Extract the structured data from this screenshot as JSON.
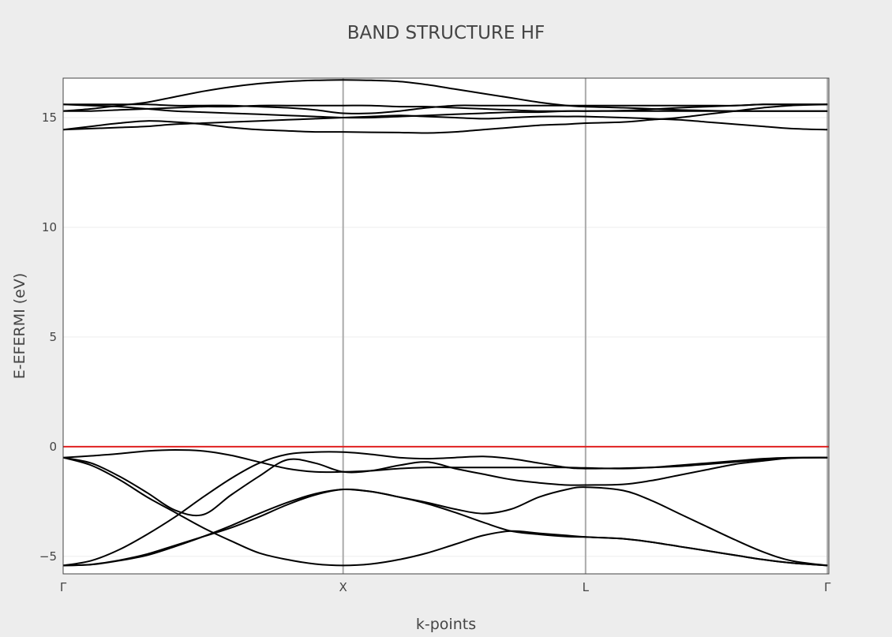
{
  "chart_data": {
    "type": "line",
    "title": "BAND STRUCTURE HF",
    "xlabel": "k-points",
    "ylabel": "E-EFERMI (eV)",
    "ylim": [
      -5.8,
      16.8
    ],
    "yticks": [
      -5,
      0,
      5,
      10,
      15
    ],
    "ytick_labels": [
      "−5",
      "0",
      "5",
      "10",
      "15"
    ],
    "xticks": [
      {
        "label": "Γ",
        "k": 0
      },
      {
        "label": "X",
        "k": 1
      },
      {
        "label": "L",
        "k": 1.866
      },
      {
        "label": "Γ",
        "k": 2.73
      }
    ],
    "xlim": [
      0,
      2.735
    ],
    "grid": true,
    "fermi_level": 0,
    "colors": {
      "bands": "#000000",
      "fermi": "#e02020",
      "kpoint_lines": "#aaaaaa",
      "grid": "#eeeeee",
      "plot_bg": "#ffffff",
      "paper_bg": "#ededed"
    },
    "k": [
      0,
      0.1,
      0.2,
      0.3,
      0.4,
      0.5,
      0.6,
      0.7,
      0.8,
      0.9,
      1.0,
      1.1,
      1.2,
      1.3,
      1.4,
      1.5,
      1.6,
      1.7,
      1.8,
      1.866,
      2.0,
      2.1,
      2.2,
      2.3,
      2.4,
      2.5,
      2.6,
      2.73
    ],
    "series": [
      {
        "values": [
          -5.42,
          -5.38,
          -5.2,
          -4.95,
          -4.55,
          -4.1,
          -3.6,
          -3.05,
          -2.55,
          -2.15,
          -1.95,
          -2.05,
          -2.3,
          -2.6,
          -3.0,
          -3.45,
          -3.85,
          -4.0,
          -4.1,
          -4.12,
          -4.2,
          -4.35,
          -4.55,
          -4.75,
          -4.95,
          -5.15,
          -5.3,
          -5.42
        ]
      },
      {
        "values": [
          -5.42,
          -5.37,
          -5.18,
          -4.9,
          -4.5,
          -4.1,
          -3.7,
          -3.2,
          -2.65,
          -2.2,
          -1.95,
          -2.05,
          -2.3,
          -2.55,
          -2.85,
          -3.05,
          -2.85,
          -2.3,
          -1.95,
          -1.85,
          -2.0,
          -2.45,
          -3.05,
          -3.65,
          -4.25,
          -4.8,
          -5.2,
          -5.42
        ]
      },
      {
        "values": [
          -5.42,
          -5.2,
          -4.7,
          -4.0,
          -3.2,
          -2.3,
          -1.45,
          -0.75,
          -0.35,
          -0.25,
          -0.25,
          -0.35,
          -0.5,
          -0.55,
          -0.5,
          -0.45,
          -0.55,
          -0.75,
          -0.95,
          -1.0,
          -0.98,
          -0.95,
          -0.9,
          -0.8,
          -0.7,
          -0.6,
          -0.52,
          -0.5
        ]
      },
      {
        "values": [
          -0.5,
          -0.75,
          -1.35,
          -2.1,
          -2.9,
          -3.1,
          -2.2,
          -1.35,
          -0.6,
          -0.75,
          -1.15,
          -1.1,
          -0.85,
          -0.7,
          -1.0,
          -1.25,
          -1.5,
          -1.65,
          -1.75,
          -1.75,
          -1.72,
          -1.55,
          -1.3,
          -1.05,
          -0.8,
          -0.65,
          -0.52,
          -0.5
        ]
      },
      {
        "values": [
          -0.5,
          -0.85,
          -1.5,
          -2.3,
          -3.0,
          -3.7,
          -4.3,
          -4.85,
          -5.15,
          -5.35,
          -5.42,
          -5.35,
          -5.15,
          -4.85,
          -4.45,
          -4.05,
          -3.85,
          -3.95,
          -4.05,
          -4.12,
          -4.2,
          -4.35,
          -4.55,
          -4.75,
          -4.95,
          -5.15,
          -5.3,
          -5.42
        ]
      },
      {
        "values": [
          -0.5,
          -0.42,
          -0.32,
          -0.2,
          -0.15,
          -0.2,
          -0.4,
          -0.7,
          -1.0,
          -1.15,
          -1.15,
          -1.1,
          -1.0,
          -0.95,
          -0.95,
          -0.95,
          -0.95,
          -0.95,
          -0.95,
          -0.97,
          -1.0,
          -0.95,
          -0.85,
          -0.75,
          -0.65,
          -0.55,
          -0.5,
          -0.5
        ]
      },
      {
        "values": [
          15.6,
          15.6,
          15.6,
          15.6,
          15.55,
          15.55,
          15.55,
          15.5,
          15.45,
          15.35,
          15.2,
          15.2,
          15.3,
          15.45,
          15.55,
          15.55,
          15.55,
          15.55,
          15.55,
          15.55,
          15.55,
          15.55,
          15.55,
          15.55,
          15.55,
          15.6,
          15.6,
          15.6
        ]
      },
      {
        "values": [
          15.3,
          15.4,
          15.55,
          15.7,
          15.95,
          16.2,
          16.4,
          16.55,
          16.65,
          16.7,
          16.72,
          16.7,
          16.65,
          16.5,
          16.3,
          16.1,
          15.9,
          15.7,
          15.55,
          15.5,
          15.45,
          15.4,
          15.35,
          15.32,
          15.3,
          15.3,
          15.3,
          15.3
        ]
      },
      {
        "values": [
          15.3,
          15.3,
          15.35,
          15.4,
          15.45,
          15.5,
          15.5,
          15.55,
          15.55,
          15.55,
          15.55,
          15.55,
          15.5,
          15.5,
          15.45,
          15.4,
          15.35,
          15.3,
          15.3,
          15.3,
          15.32,
          15.38,
          15.45,
          15.5,
          15.55,
          15.6,
          15.6,
          15.6
        ]
      },
      {
        "values": [
          15.6,
          15.55,
          15.5,
          15.4,
          15.3,
          15.25,
          15.2,
          15.15,
          15.1,
          15.05,
          15.0,
          15.0,
          15.05,
          15.1,
          15.15,
          15.2,
          15.25,
          15.25,
          15.3,
          15.3,
          15.3,
          15.3,
          15.3,
          15.3,
          15.3,
          15.3,
          15.3,
          15.3
        ]
      },
      {
        "values": [
          14.45,
          14.5,
          14.55,
          14.6,
          14.7,
          14.75,
          14.8,
          14.85,
          14.9,
          14.95,
          15.0,
          15.05,
          15.1,
          15.05,
          15.0,
          14.95,
          15.0,
          15.05,
          15.05,
          15.05,
          15.0,
          14.95,
          14.9,
          14.8,
          14.7,
          14.6,
          14.5,
          14.45
        ]
      },
      {
        "values": [
          14.45,
          14.6,
          14.75,
          14.85,
          14.8,
          14.7,
          14.55,
          14.45,
          14.4,
          14.35,
          14.35,
          14.33,
          14.32,
          14.3,
          14.35,
          14.45,
          14.55,
          14.65,
          14.7,
          14.75,
          14.8,
          14.9,
          15.0,
          15.15,
          15.3,
          15.45,
          15.55,
          15.6
        ]
      }
    ]
  }
}
